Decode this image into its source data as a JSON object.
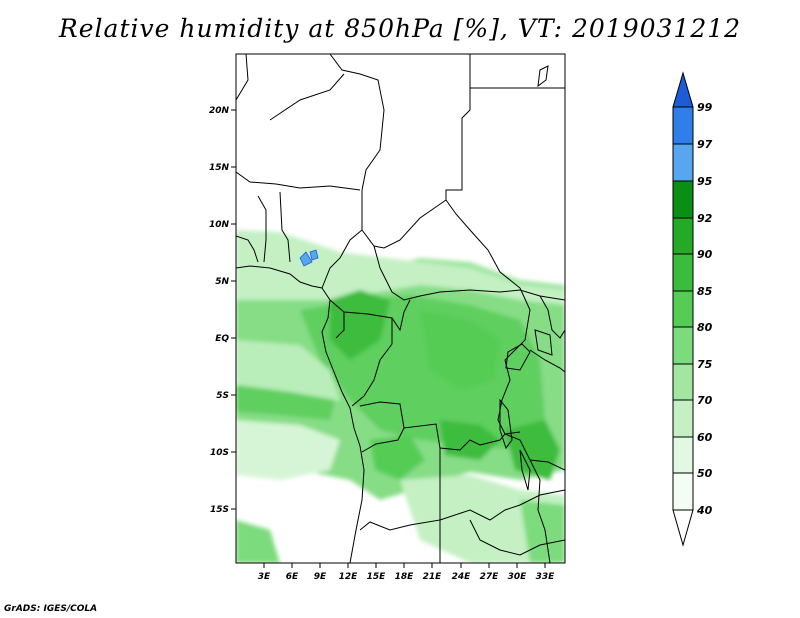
{
  "title": "Relative humidity at 850hPa [%], VT: 2019031212",
  "credit": "GrADS: IGES/COLA",
  "map": {
    "lat_labels": [
      "20N",
      "15N",
      "10N",
      "5N",
      "EQ",
      "5S",
      "10S",
      "15S"
    ],
    "lon_labels": [
      "3E",
      "6E",
      "9E",
      "12E",
      "15E",
      "18E",
      "21E",
      "24E",
      "27E",
      "30E",
      "33E"
    ]
  },
  "colorbar": {
    "levels": [
      "99",
      "97",
      "95",
      "92",
      "90",
      "85",
      "80",
      "75",
      "70",
      "60",
      "50",
      "40"
    ],
    "colors": [
      "#1c5cd6",
      "#2f7fe8",
      "#58a6f0",
      "#0a8f14",
      "#26a926",
      "#3cbc3c",
      "#55cd55",
      "#7cdb7c",
      "#a2e6a2",
      "#c4f0c4",
      "#e2f8e2",
      "#f4fdf4",
      "#ffffff"
    ]
  }
}
